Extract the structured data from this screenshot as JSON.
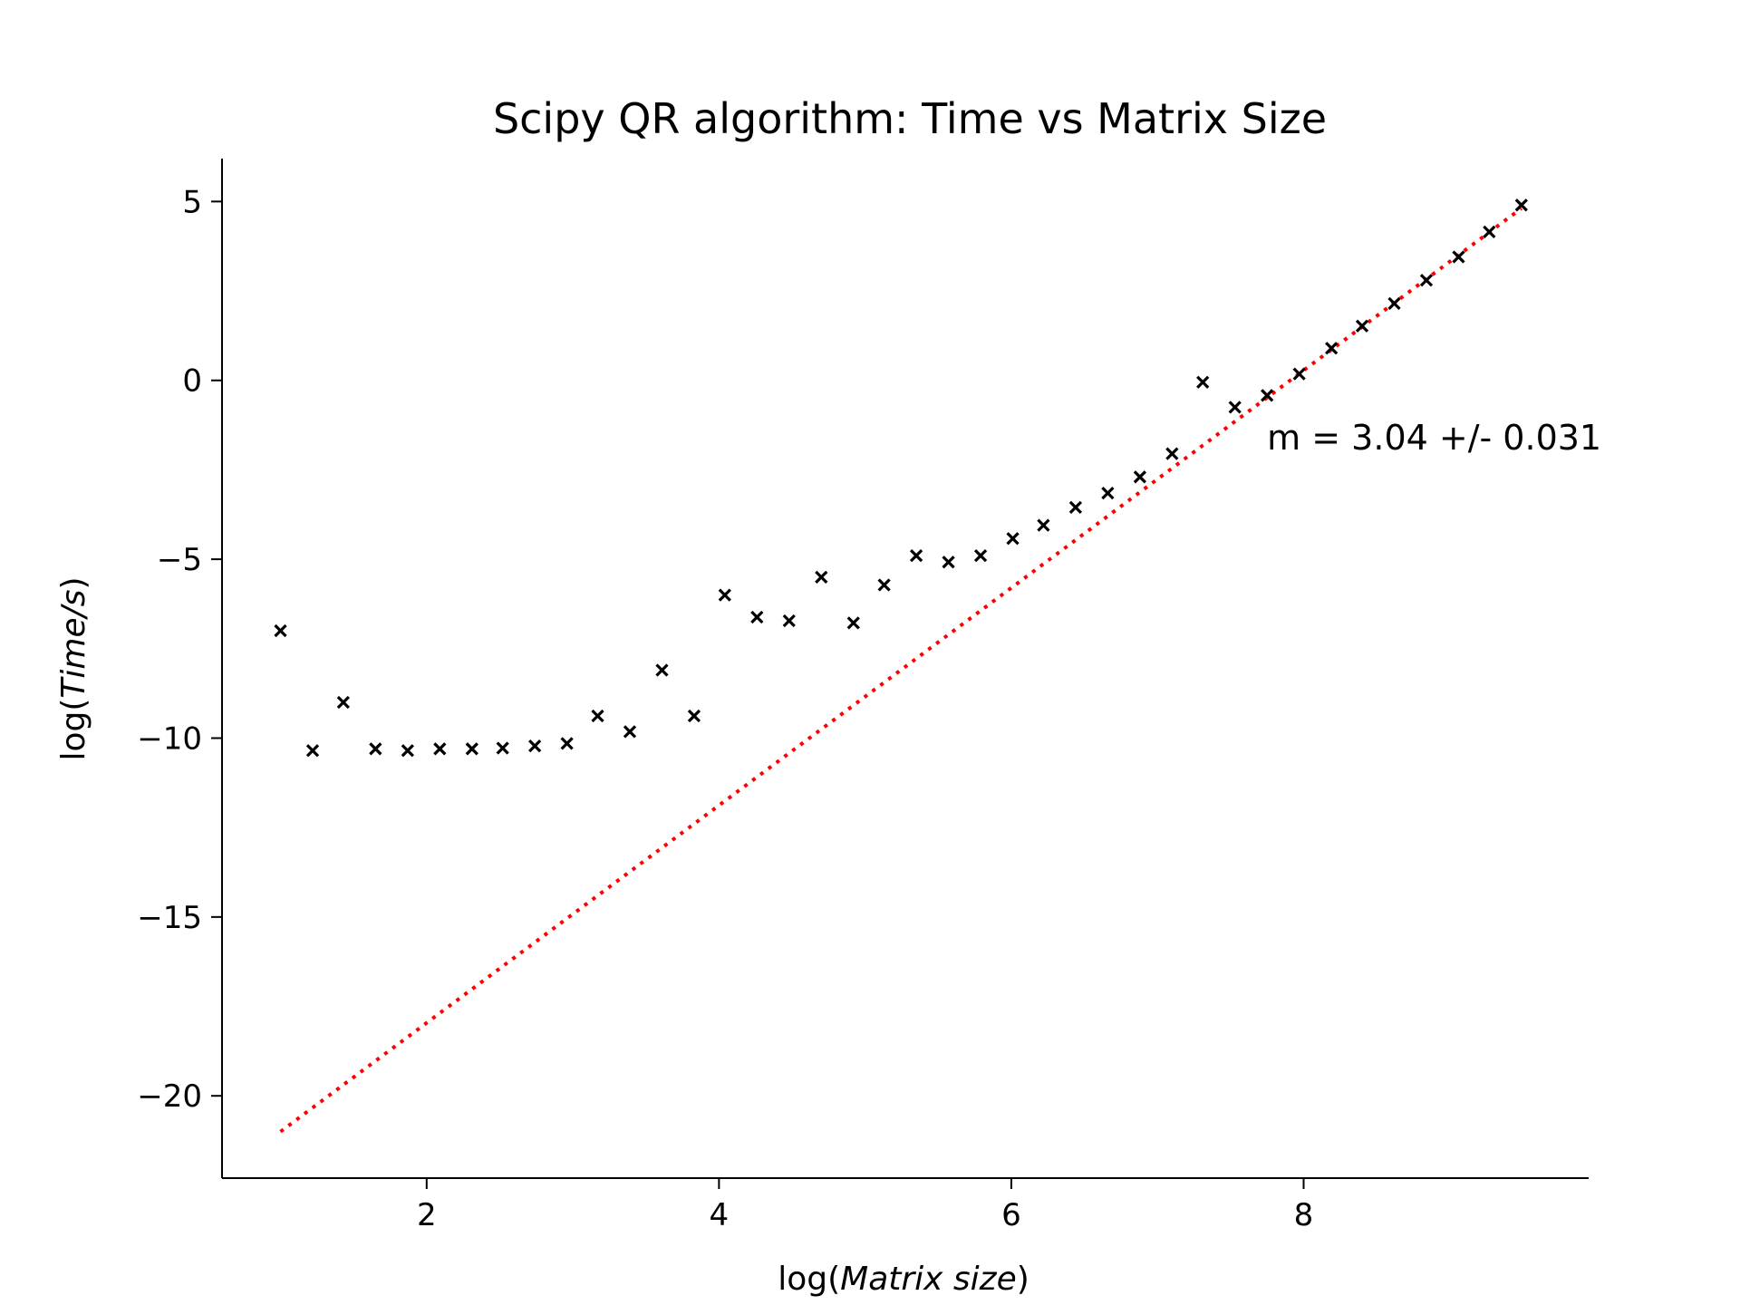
{
  "chart_data": {
    "type": "scatter",
    "title": "Scipy QR algorithm: Time vs Matrix Size",
    "xlabel": {
      "prefix": "log(",
      "italic": "Matrix size",
      "suffix": ")"
    },
    "ylabel": {
      "prefix": "log(",
      "italic": "Time/s",
      "suffix": ")"
    },
    "xlim": [
      0.6,
      9.95
    ],
    "ylim": [
      -22.3,
      6.2
    ],
    "xticks": [
      2,
      4,
      6,
      8
    ],
    "xtick_labels": [
      "2",
      "4",
      "6",
      "8"
    ],
    "yticks": [
      5,
      0,
      -5,
      -10,
      -15,
      -20
    ],
    "ytick_labels": [
      "5",
      "0",
      "−5",
      "−10",
      "−15",
      "−20"
    ],
    "grid": false,
    "series": [
      {
        "marker": "x",
        "color": "#000000",
        "x": [
          1.0,
          1.22,
          1.43,
          1.65,
          1.87,
          2.09,
          2.31,
          2.52,
          2.74,
          2.96,
          3.17,
          3.39,
          3.61,
          3.83,
          4.04,
          4.26,
          4.48,
          4.7,
          4.92,
          5.13,
          5.35,
          5.57,
          5.79,
          6.01,
          6.22,
          6.44,
          6.66,
          6.88,
          7.1,
          7.31,
          7.53,
          7.75,
          7.97,
          8.19,
          8.4,
          8.62,
          8.84,
          9.06,
          9.27,
          9.49
        ],
        "y": [
          -7.0,
          -10.35,
          -9.0,
          -10.3,
          -10.35,
          -10.3,
          -10.3,
          -10.28,
          -10.22,
          -10.15,
          -9.38,
          -9.82,
          -8.1,
          -9.38,
          -6.0,
          -6.62,
          -6.72,
          -5.5,
          -6.78,
          -5.72,
          -4.9,
          -5.08,
          -4.9,
          -4.42,
          -4.05,
          -3.55,
          -3.15,
          -2.7,
          -2.05,
          -0.05,
          -0.75,
          -0.42,
          0.18,
          0.9,
          1.52,
          2.15,
          2.8,
          3.45,
          4.15,
          4.9
        ]
      },
      {
        "type": "line",
        "style": "dotted",
        "color": "#ff0000",
        "x": [
          1.0,
          9.49
        ],
        "y": [
          -21.0,
          4.81
        ]
      }
    ],
    "annotation": {
      "text": "m = 3.04 +/- 0.031",
      "x": 7.75,
      "y": -1.6
    }
  }
}
